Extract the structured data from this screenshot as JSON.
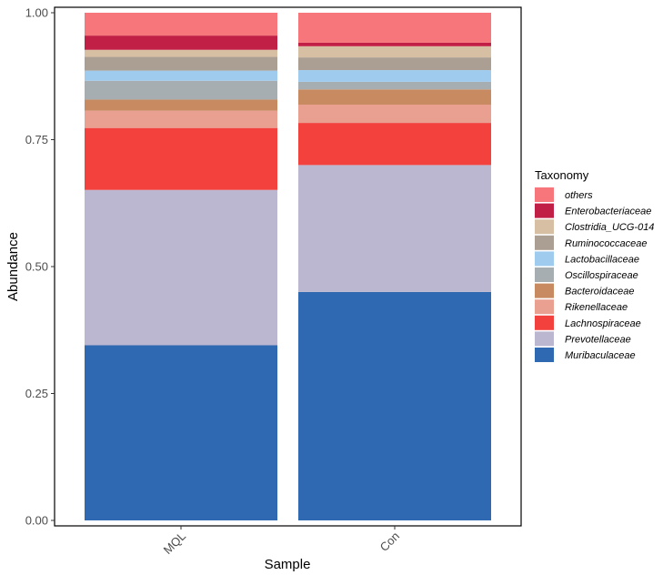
{
  "chart_data": {
    "type": "bar",
    "stacked": true,
    "title": "",
    "xlabel": "Sample",
    "ylabel": "Abundance",
    "ylim": [
      0,
      1
    ],
    "yticks": [
      "0.00",
      "0.25",
      "0.50",
      "0.75",
      "1.00"
    ],
    "categories": [
      "MQL",
      "Con"
    ],
    "legend_title": "Taxonomy",
    "legend_position": "right",
    "grid": false,
    "series": [
      {
        "name": "Muribaculaceae",
        "color": "#2E69B1",
        "values": [
          0.345,
          0.45
        ]
      },
      {
        "name": "Prevotellaceae",
        "color": "#BBB7D0",
        "values": [
          0.306,
          0.25
        ]
      },
      {
        "name": "Lachnospiraceae",
        "color": "#F3413E",
        "values": [
          0.122,
          0.083
        ]
      },
      {
        "name": "Rikenellaceae",
        "color": "#E9A090",
        "values": [
          0.034,
          0.036
        ]
      },
      {
        "name": "Bacteroidaceae",
        "color": "#C88A60",
        "values": [
          0.022,
          0.03
        ]
      },
      {
        "name": "Oscillospiraceae",
        "color": "#A7AEB2",
        "values": [
          0.037,
          0.015
        ]
      },
      {
        "name": "Lactobacillaceae",
        "color": "#9FCBEE",
        "values": [
          0.02,
          0.023
        ]
      },
      {
        "name": "Ruminococcaceae",
        "color": "#AB9F93",
        "values": [
          0.027,
          0.025
        ]
      },
      {
        "name": "Clostridia_UCG-014",
        "color": "#D7BFA3",
        "values": [
          0.014,
          0.022
        ]
      },
      {
        "name": "Enterobacteriaceae",
        "color": "#C21F46",
        "values": [
          0.028,
          0.007
        ]
      },
      {
        "name": "others",
        "color": "#F6767B",
        "values": [
          0.045,
          0.059
        ]
      }
    ]
  }
}
